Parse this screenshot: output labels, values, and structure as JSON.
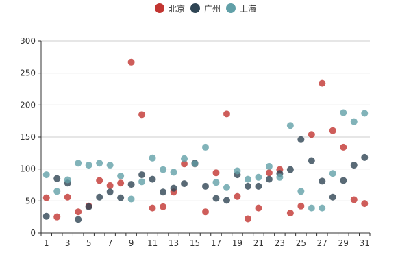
{
  "chart_data": {
    "type": "scatter",
    "title": "",
    "xlabel": "",
    "ylabel": "",
    "xlim": [
      1,
      31
    ],
    "ylim": [
      0,
      300
    ],
    "grid": true,
    "legend_position": "top-center",
    "x_tick_labels": [
      "1",
      "3",
      "5",
      "7",
      "9",
      "11",
      "13",
      "15",
      "17",
      "19",
      "21",
      "23",
      "25",
      "27",
      "29",
      "31"
    ],
    "y_tick_labels": [
      "0",
      "50",
      "100",
      "150",
      "200",
      "250",
      "300"
    ],
    "x": [
      1,
      2,
      3,
      4,
      5,
      6,
      7,
      8,
      9,
      10,
      11,
      12,
      13,
      14,
      15,
      16,
      17,
      18,
      19,
      20,
      21,
      22,
      23,
      24,
      25,
      26,
      27,
      28,
      29,
      30,
      31
    ],
    "series": [
      {
        "name": "北京",
        "color": "#c23531",
        "values": [
          55,
          25,
          56,
          33,
          42,
          82,
          74,
          78,
          267,
          185,
          39,
          41,
          64,
          108,
          108,
          33,
          94,
          186,
          57,
          22,
          39,
          94,
          99,
          31,
          42,
          154,
          234,
          160,
          134,
          52,
          46
        ]
      },
      {
        "name": "广州",
        "color": "#2f4554",
        "values": [
          26,
          85,
          78,
          21,
          41,
          56,
          64,
          55,
          76,
          91,
          84,
          64,
          70,
          77,
          109,
          73,
          54,
          51,
          91,
          73,
          73,
          84,
          93,
          99,
          146,
          113,
          81,
          56,
          82,
          106,
          118
        ]
      },
      {
        "name": "上海",
        "color": "#61a0a8",
        "values": [
          91,
          65,
          83,
          109,
          106,
          109,
          106,
          89,
          53,
          80,
          117,
          99,
          95,
          116,
          108,
          134,
          79,
          71,
          97,
          84,
          87,
          104,
          87,
          168,
          65,
          39,
          39,
          93,
          188,
          174,
          187
        ]
      }
    ]
  }
}
